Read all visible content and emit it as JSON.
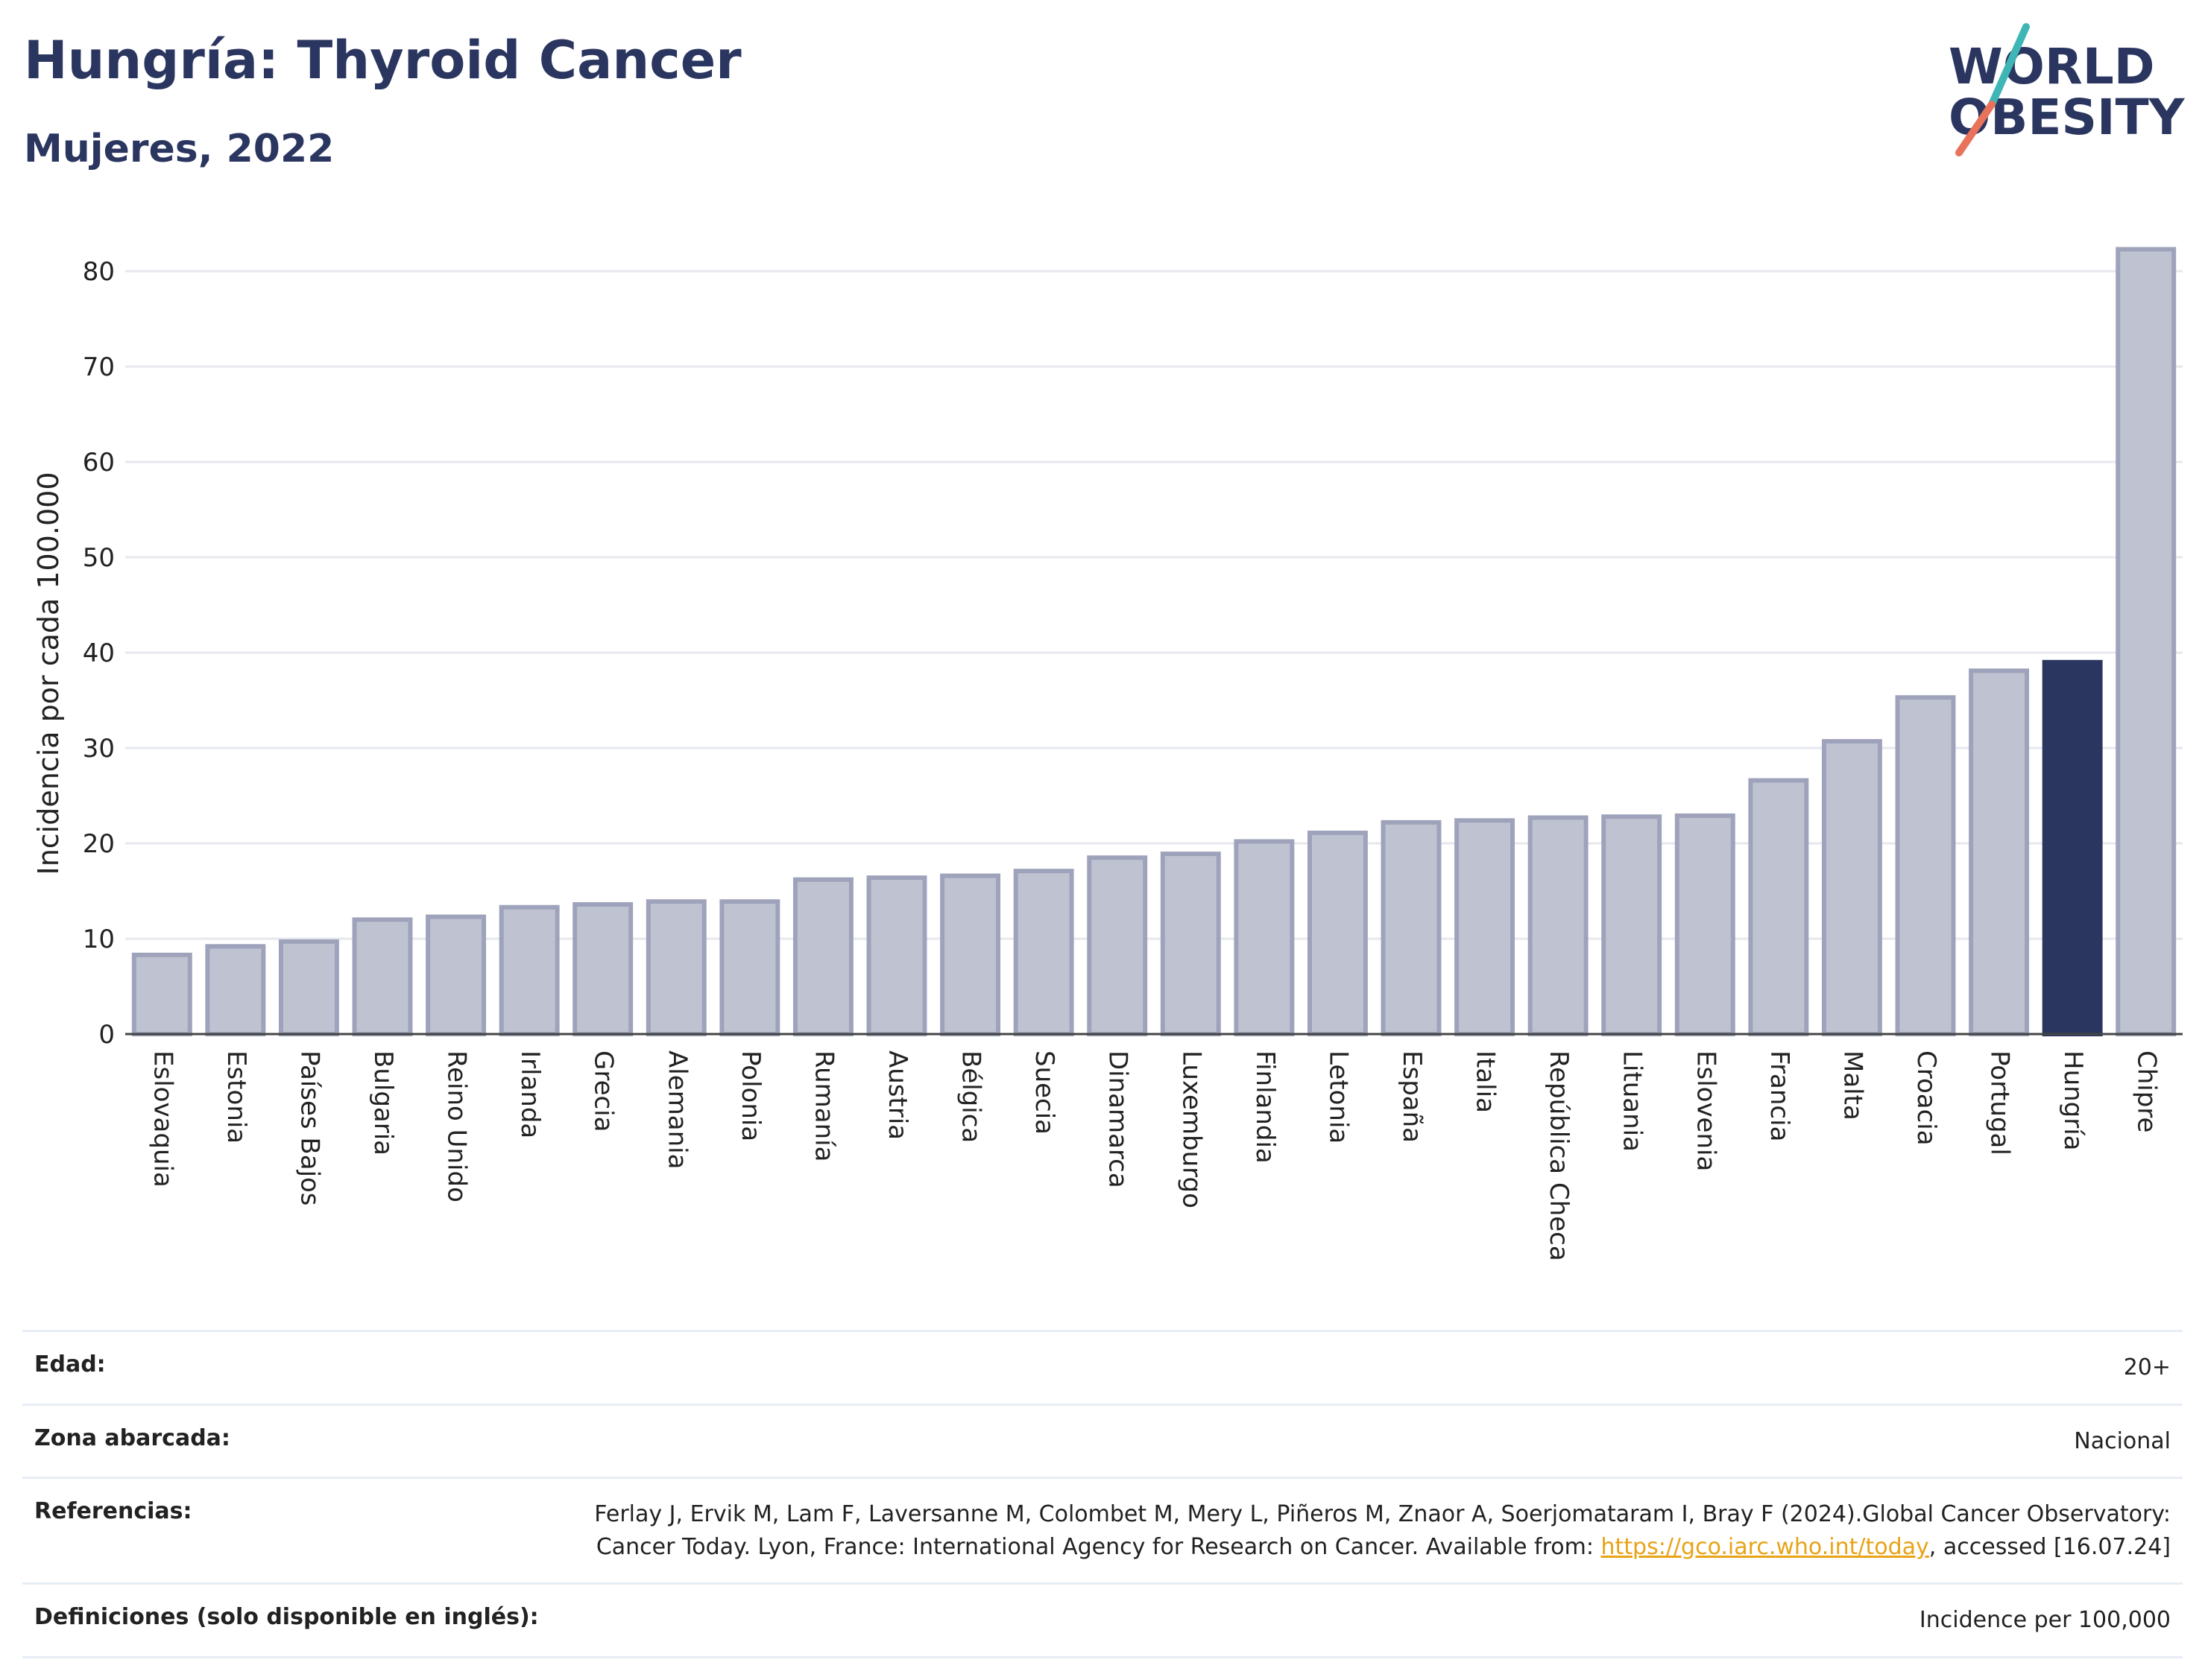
{
  "header": {
    "title": "Hungría: Thyroid Cancer",
    "subtitle": "Mujeres, 2022"
  },
  "logo": {
    "line1": "WORLD",
    "line2": "OBESITY",
    "accent_colors": [
      "#3fb6b6",
      "#e8735a"
    ]
  },
  "colors": {
    "bar_default": "#bfc3d1",
    "bar_default_border": "#9ea3bb",
    "bar_highlight": "#2b3660",
    "grid": "#e6e8ee"
  },
  "chart_data": {
    "type": "bar",
    "ylabel": "Incidencia por cada 100.000",
    "ylim": [
      0,
      85
    ],
    "yticks": [
      0,
      10,
      20,
      30,
      40,
      50,
      60,
      70,
      80
    ],
    "grid": true,
    "highlight": "Hungría",
    "categories": [
      "Eslovaquia",
      "Estonia",
      "Países Bajos",
      "Bulgaria",
      "Reino Unido",
      "Irlanda",
      "Grecia",
      "Alemania",
      "Polonia",
      "Rumanía",
      "Austria",
      "Bélgica",
      "Suecia",
      "Dinamarca",
      "Luxemburgo",
      "Finlandia",
      "Letonia",
      "España",
      "Italia",
      "República Checa",
      "Lituania",
      "Eslovenia",
      "Francia",
      "Malta",
      "Croacia",
      "Portugal",
      "Hungría",
      "Chipre"
    ],
    "values": [
      8.3,
      9.2,
      9.7,
      12.0,
      12.3,
      13.3,
      13.6,
      13.9,
      13.9,
      16.2,
      16.4,
      16.6,
      17.1,
      18.5,
      18.9,
      20.2,
      21.1,
      22.2,
      22.4,
      22.7,
      22.8,
      22.9,
      26.6,
      30.7,
      35.3,
      38.1,
      39.0,
      82.3
    ]
  },
  "meta": {
    "rows": [
      {
        "label": "Edad:",
        "value": "20+"
      },
      {
        "label": "Zona abarcada:",
        "value": "Nacional"
      },
      {
        "label": "Referencias:",
        "value_pre": "Ferlay J, Ervik M, Lam F, Laversanne M, Colombet M, Mery L, Piñeros M, Znaor A, Soerjomataram I, Bray F (2024).Global Cancer Observatory: Cancer Today. Lyon, France: International Agency for Research on Cancer. Available from: ",
        "link": "https://gco.iarc.who.int/today",
        "value_post": ", accessed [16.07.24]"
      },
      {
        "label": "Definiciones (solo disponible en inglés):",
        "value": "Incidence per 100,000"
      }
    ]
  }
}
